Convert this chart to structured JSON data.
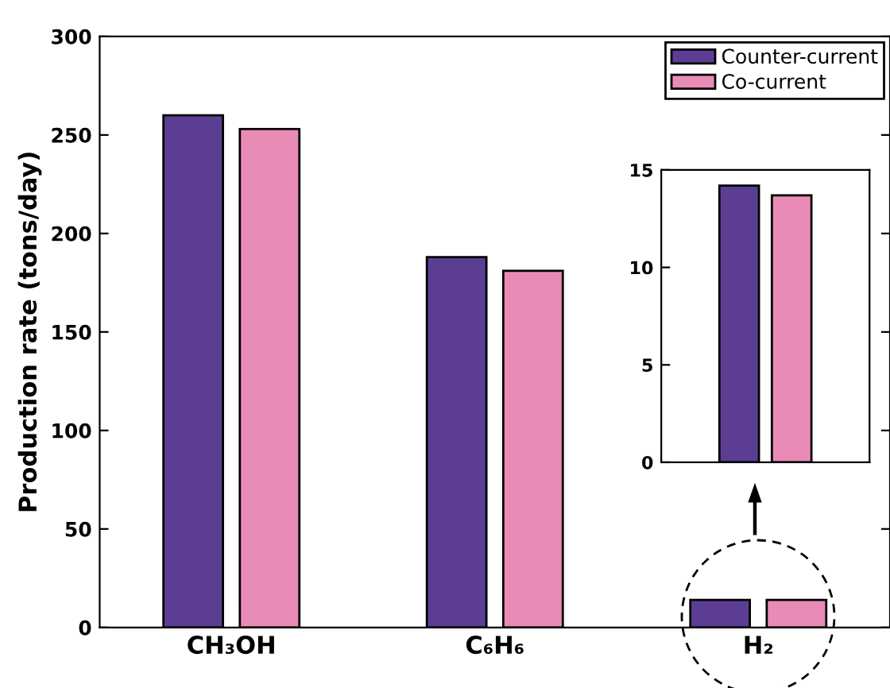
{
  "chart_data": [
    {
      "type": "bar",
      "ylabel": "Production rate (tons/day)",
      "categories": [
        "CH₃OH",
        "C₆H₆",
        "H₂"
      ],
      "series": [
        {
          "name": "Counter-current",
          "color": "#5b3e94",
          "values": [
            260,
            188,
            14
          ]
        },
        {
          "name": "Co-current",
          "color": "#e98bb7",
          "values": [
            253,
            181,
            14
          ]
        }
      ],
      "ylim": [
        0,
        300
      ],
      "yticks": [
        0,
        50,
        100,
        150,
        200,
        250,
        300
      ],
      "legend": "top right",
      "grid": false
    },
    {
      "type": "bar",
      "categories": [
        null
      ],
      "series": [
        {
          "color": "#5b3e94",
          "values": [
            14.2
          ]
        },
        {
          "color": "#e98bb7",
          "values": [
            13.7
          ]
        }
      ],
      "ylim": [
        0,
        15
      ],
      "yticks": [
        0,
        5,
        10,
        15
      ],
      "grid": false
    }
  ]
}
